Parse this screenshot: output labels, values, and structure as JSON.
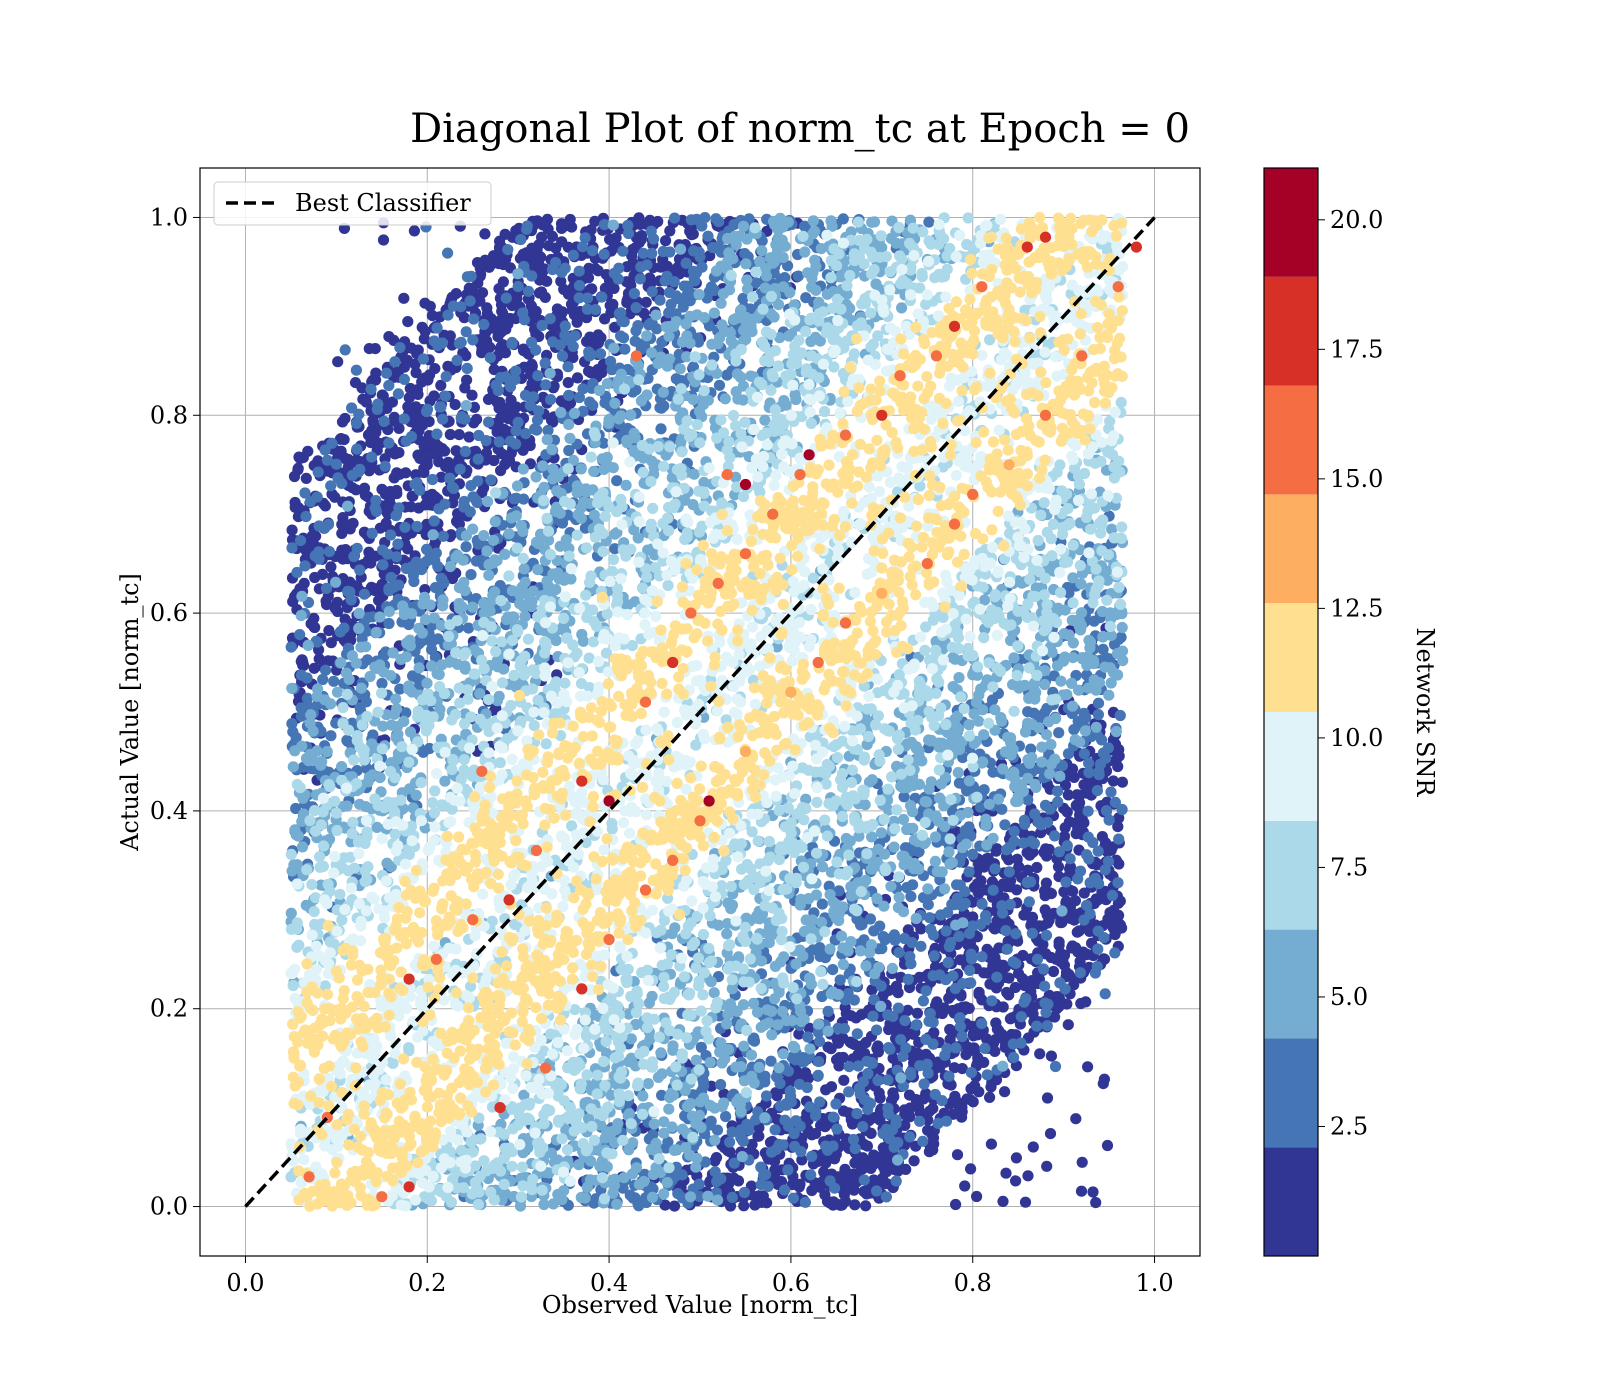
{
  "chart_data": {
    "type": "scatter",
    "title": "Diagonal Plot of norm_tc at Epoch = 0",
    "xlabel": "Observed Value [norm_tc]",
    "ylabel": "Actual Value [norm_tc]",
    "xlim": [
      -0.05,
      1.05
    ],
    "ylim": [
      -0.05,
      1.05
    ],
    "xticks": [
      "0.0",
      "0.2",
      "0.4",
      "0.6",
      "0.8",
      "1.0"
    ],
    "yticks": [
      "0.0",
      "0.2",
      "0.4",
      "0.6",
      "0.8",
      "1.0"
    ],
    "grid": true,
    "legend": {
      "position": "top-left",
      "entries": [
        {
          "label": "Best Classifier",
          "style": "dashed",
          "color": "#000000"
        }
      ]
    },
    "reference_line": {
      "name": "Best Classifier",
      "x": [
        0.0,
        1.0
      ],
      "y": [
        0.0,
        1.0
      ]
    },
    "colorbar": {
      "label": "Network SNR",
      "range": [
        0.0,
        21.0
      ],
      "ticks": [
        "2.5",
        "5.0",
        "7.5",
        "10.0",
        "12.5",
        "15.0",
        "17.5",
        "20.0"
      ],
      "bins": [
        0.0,
        2.1,
        4.2,
        6.3,
        8.4,
        10.5,
        12.6,
        14.7,
        16.8,
        18.9,
        21.0
      ],
      "colors": [
        "#313695",
        "#4575b4",
        "#74add1",
        "#abd9e9",
        "#e0f3f8",
        "#fee090",
        "#fdae61",
        "#f46d43",
        "#d73027",
        "#a50026"
      ]
    },
    "series": [
      {
        "color_by": "Network SNR",
        "points_snr_ge_13": [
          [
            0.18,
            0.02,
            17
          ],
          [
            0.28,
            0.1,
            17
          ],
          [
            0.33,
            0.14,
            16
          ],
          [
            0.37,
            0.22,
            17
          ],
          [
            0.4,
            0.27,
            16
          ],
          [
            0.44,
            0.32,
            15
          ],
          [
            0.47,
            0.35,
            16
          ],
          [
            0.51,
            0.41,
            19
          ],
          [
            0.5,
            0.39,
            16
          ],
          [
            0.55,
            0.46,
            14
          ],
          [
            0.6,
            0.52,
            14
          ],
          [
            0.63,
            0.55,
            16
          ],
          [
            0.66,
            0.59,
            16
          ],
          [
            0.7,
            0.62,
            14
          ],
          [
            0.75,
            0.65,
            15
          ],
          [
            0.78,
            0.69,
            16
          ],
          [
            0.8,
            0.72,
            16
          ],
          [
            0.84,
            0.75,
            14
          ],
          [
            0.88,
            0.8,
            16
          ],
          [
            0.92,
            0.86,
            15
          ],
          [
            0.96,
            0.93,
            16
          ],
          [
            0.98,
            0.97,
            17
          ],
          [
            0.18,
            0.23,
            17
          ],
          [
            0.21,
            0.25,
            15
          ],
          [
            0.25,
            0.29,
            15
          ],
          [
            0.29,
            0.31,
            17
          ],
          [
            0.32,
            0.36,
            15
          ],
          [
            0.37,
            0.43,
            17
          ],
          [
            0.4,
            0.41,
            19
          ],
          [
            0.44,
            0.51,
            15
          ],
          [
            0.47,
            0.55,
            17
          ],
          [
            0.49,
            0.6,
            15
          ],
          [
            0.52,
            0.63,
            16
          ],
          [
            0.55,
            0.66,
            16
          ],
          [
            0.58,
            0.7,
            15
          ],
          [
            0.62,
            0.76,
            19
          ],
          [
            0.55,
            0.73,
            19
          ],
          [
            0.66,
            0.78,
            15
          ],
          [
            0.7,
            0.8,
            18
          ],
          [
            0.72,
            0.84,
            16
          ],
          [
            0.76,
            0.86,
            15
          ],
          [
            0.78,
            0.89,
            17
          ],
          [
            0.81,
            0.93,
            15
          ],
          [
            0.86,
            0.97,
            17
          ],
          [
            0.88,
            0.98,
            17
          ],
          [
            0.43,
            0.86,
            15
          ],
          [
            0.61,
            0.74,
            15
          ],
          [
            0.09,
            0.09,
            15
          ],
          [
            0.07,
            0.03,
            15
          ],
          [
            0.15,
            0.01,
            15
          ],
          [
            0.26,
            0.44,
            15
          ],
          [
            0.53,
            0.74,
            16
          ]
        ],
        "background_density": "roughly 12000 points with SNR about 1–13, spread over a band around the diagonal; low-SNR (dark blue) points near x≈0.3 and x≈0.8–0.9"
      }
    ]
  }
}
